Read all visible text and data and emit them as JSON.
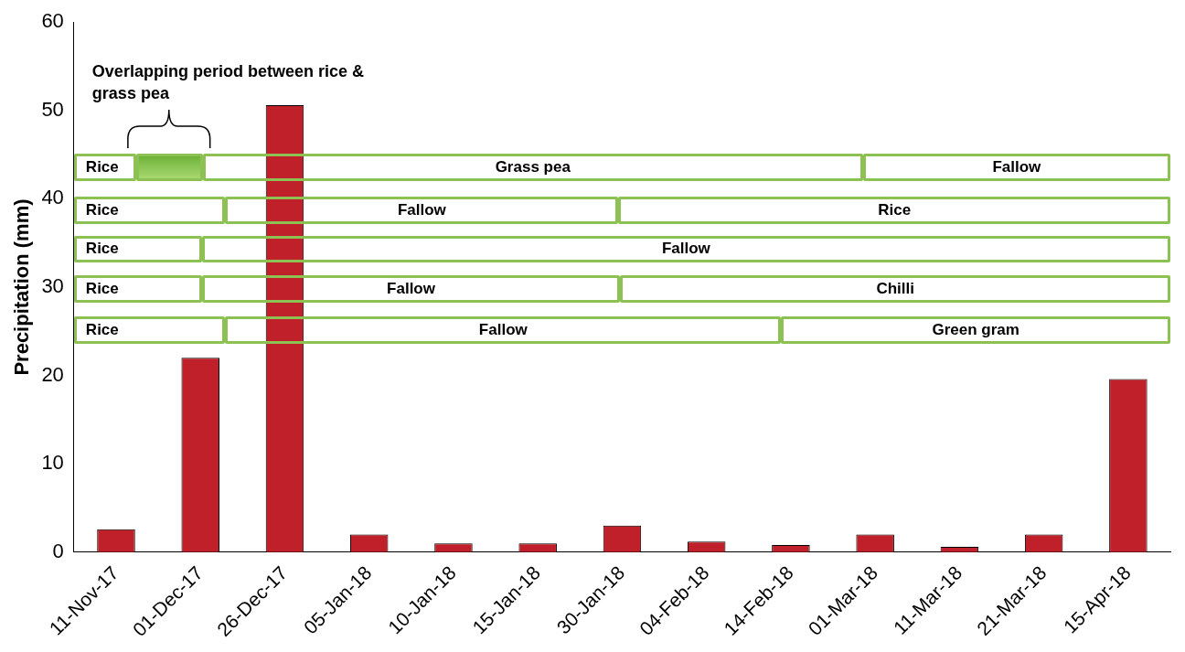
{
  "chart_data": {
    "type": "bar",
    "ylabel": "Precipitation (mm)",
    "categories": [
      "11-Nov-17",
      "01-Dec-17",
      "26-Dec-17",
      "05-Jan-18",
      "10-Jan-18",
      "15-Jan-18",
      "30-Jan-18",
      "04-Feb-18",
      "14-Feb-18",
      "01-Mar-18",
      "11-Mar-18",
      "21-Mar-18",
      "15-Apr-18"
    ],
    "values": [
      2.6,
      22,
      50.6,
      2,
      1,
      1,
      3,
      1.2,
      0.8,
      2,
      0.6,
      2,
      19.6
    ],
    "color": "#c0202a",
    "ylim": [
      0,
      60
    ],
    "yticks": [
      0,
      10,
      20,
      30,
      40,
      50,
      60
    ],
    "grid": false,
    "legend": false,
    "annotations": [
      "Overlapping period between rice & grass pea",
      "Rice",
      "Grass pea",
      "Fallow",
      "Rice",
      "Fallow",
      "Rice",
      "Rice",
      "Fallow",
      "Rice",
      "Fallow",
      "Chilli",
      "Rice",
      "Fallow",
      "Green gram"
    ]
  }
}
